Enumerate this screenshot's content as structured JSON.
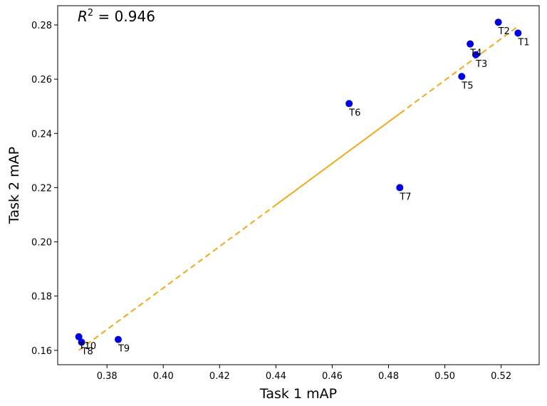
{
  "chart_data": {
    "type": "scatter",
    "xlabel": "Task 1 mAP",
    "ylabel": "Task 2 mAP",
    "xlim": [
      0.3625,
      0.5335
    ],
    "ylim": [
      0.1547,
      0.2871
    ],
    "x_ticks": [
      0.38,
      0.4,
      0.42,
      0.44,
      0.46,
      0.48,
      0.5,
      0.52
    ],
    "y_ticks": [
      0.16,
      0.18,
      0.2,
      0.22,
      0.24,
      0.26,
      0.28
    ],
    "x_tick_labels": [
      "0.38",
      "0.40",
      "0.42",
      "0.44",
      "0.46",
      "0.48",
      "0.50",
      "0.52"
    ],
    "y_tick_labels": [
      "0.16",
      "0.18",
      "0.20",
      "0.22",
      "0.24",
      "0.26",
      "0.28"
    ],
    "annotation": {
      "r2_prefix": "R",
      "r2_exponent": "2",
      "r2_value_text": " = 0.946"
    },
    "points": [
      {
        "label": "T1",
        "x": 0.526,
        "y": 0.277
      },
      {
        "label": "T2",
        "x": 0.519,
        "y": 0.281
      },
      {
        "label": "T3",
        "x": 0.511,
        "y": 0.269
      },
      {
        "label": "T4",
        "x": 0.509,
        "y": 0.273
      },
      {
        "label": "T5",
        "x": 0.506,
        "y": 0.261
      },
      {
        "label": "T6",
        "x": 0.466,
        "y": 0.251
      },
      {
        "label": "T7",
        "x": 0.484,
        "y": 0.22
      },
      {
        "label": "T8",
        "x": 0.371,
        "y": 0.163
      },
      {
        "label": "T9",
        "x": 0.384,
        "y": 0.164
      },
      {
        "label": "T10",
        "x": 0.37,
        "y": 0.165
      }
    ],
    "fit_line": {
      "x_start": 0.37,
      "y_start": 0.16,
      "x_end": 0.526,
      "y_end": 0.2795,
      "solid_range": [
        0.44,
        0.484
      ]
    },
    "colors": {
      "points": "#0000e0",
      "fit_line": "#f2a91b",
      "axes": "#000000"
    },
    "grid": false
  }
}
